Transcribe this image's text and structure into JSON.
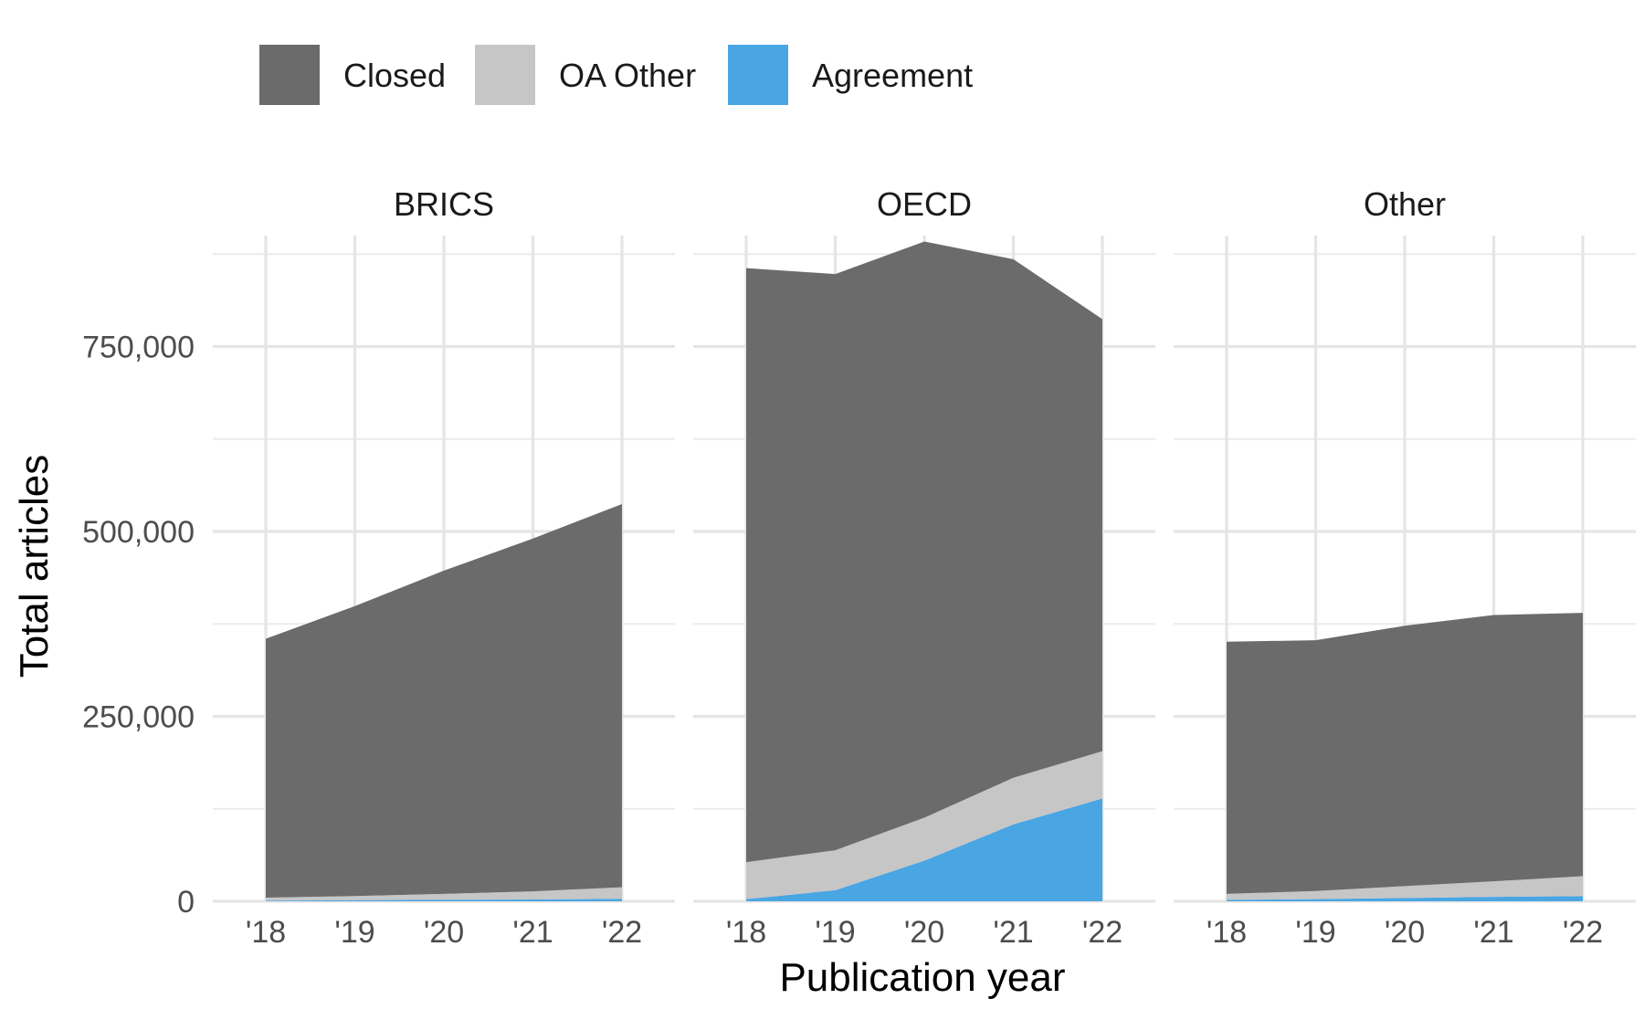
{
  "chart_data": {
    "type": "area",
    "stacked": true,
    "facet_panels": [
      "BRICS",
      "OECD",
      "Other"
    ],
    "x": [
      "'18",
      "'19",
      "'20",
      "'21",
      "'22"
    ],
    "xlabel": "Publication year",
    "ylabel": "Total articles",
    "ylim": [
      0,
      900000
    ],
    "y_ticks": [
      0,
      250000,
      500000,
      750000
    ],
    "y_tick_labels": [
      "0",
      "250,000",
      "500,000",
      "750,000"
    ],
    "grid": true,
    "legend": {
      "position": "top-left",
      "entries": [
        "Closed",
        "OA Other",
        "Agreement"
      ]
    },
    "colors": {
      "Closed": "#6b6b6b",
      "OA Other": "#c6c6c6",
      "Agreement": "#4aa5e3"
    },
    "panels": [
      {
        "name": "BRICS",
        "series": [
          {
            "name": "Agreement",
            "values": [
              1000,
              1500,
              2000,
              2500,
              3500
            ]
          },
          {
            "name": "OA Other",
            "values": [
              4000,
              5500,
              8000,
              11000,
              15500
            ]
          },
          {
            "name": "Closed",
            "values": [
              350000,
              392000,
              437000,
              477000,
              518000
            ]
          }
        ]
      },
      {
        "name": "OECD",
        "series": [
          {
            "name": "Agreement",
            "values": [
              3000,
              15000,
              55000,
              104000,
              139000
            ]
          },
          {
            "name": "OA Other",
            "values": [
              50000,
              54000,
              58000,
              63000,
              64000
            ]
          },
          {
            "name": "Closed",
            "values": [
              803000,
              779000,
              779000,
              701000,
              584000
            ]
          }
        ]
      },
      {
        "name": "Other",
        "series": [
          {
            "name": "Agreement",
            "values": [
              2000,
              3000,
              4500,
              6000,
              7000
            ]
          },
          {
            "name": "OA Other",
            "values": [
              8000,
              11000,
              16000,
              21000,
              27000
            ]
          },
          {
            "name": "Closed",
            "values": [
              341000,
              339000,
              352000,
              360000,
              356000
            ]
          }
        ]
      }
    ]
  }
}
